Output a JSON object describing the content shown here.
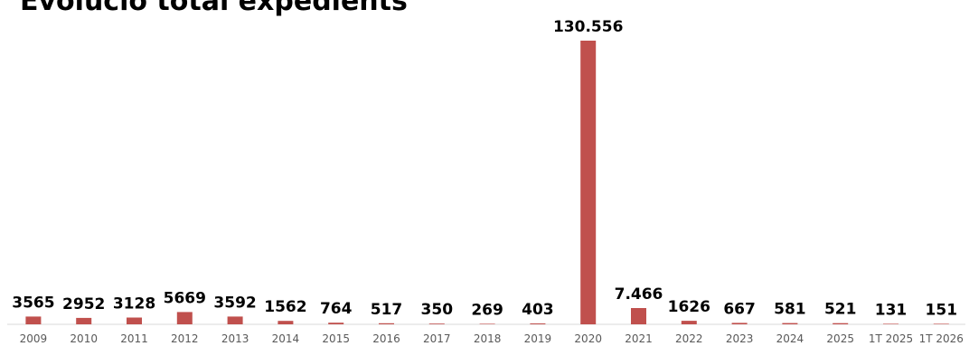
{
  "chart_data": {
    "type": "bar",
    "title": "Evolució total expedients",
    "categories": [
      "2009",
      "2010",
      "2011",
      "2012",
      "2013",
      "2014",
      "2015",
      "2016",
      "2017",
      "2018",
      "2019",
      "2020",
      "2021",
      "2022",
      "2023",
      "2024",
      "2025",
      "1T 2025",
      "1T 2026"
    ],
    "values": [
      3565,
      2952,
      3128,
      5669,
      3592,
      1562,
      764,
      517,
      350,
      269,
      403,
      130556,
      7466,
      1626,
      667,
      581,
      521,
      131,
      151
    ],
    "data_labels": [
      "3565",
      "2952",
      "3128",
      "5669",
      "3592",
      "1562",
      "764",
      "517",
      "350",
      "269",
      "403",
      "130.556",
      "7.466",
      "1626",
      "667",
      "581",
      "521",
      "131",
      "151"
    ],
    "bar_color": "#c0504d",
    "axis_color": "#d9d9d9",
    "ylim": [
      0,
      130556
    ],
    "grid": false,
    "legend": "none",
    "xlabel": "",
    "ylabel": ""
  }
}
